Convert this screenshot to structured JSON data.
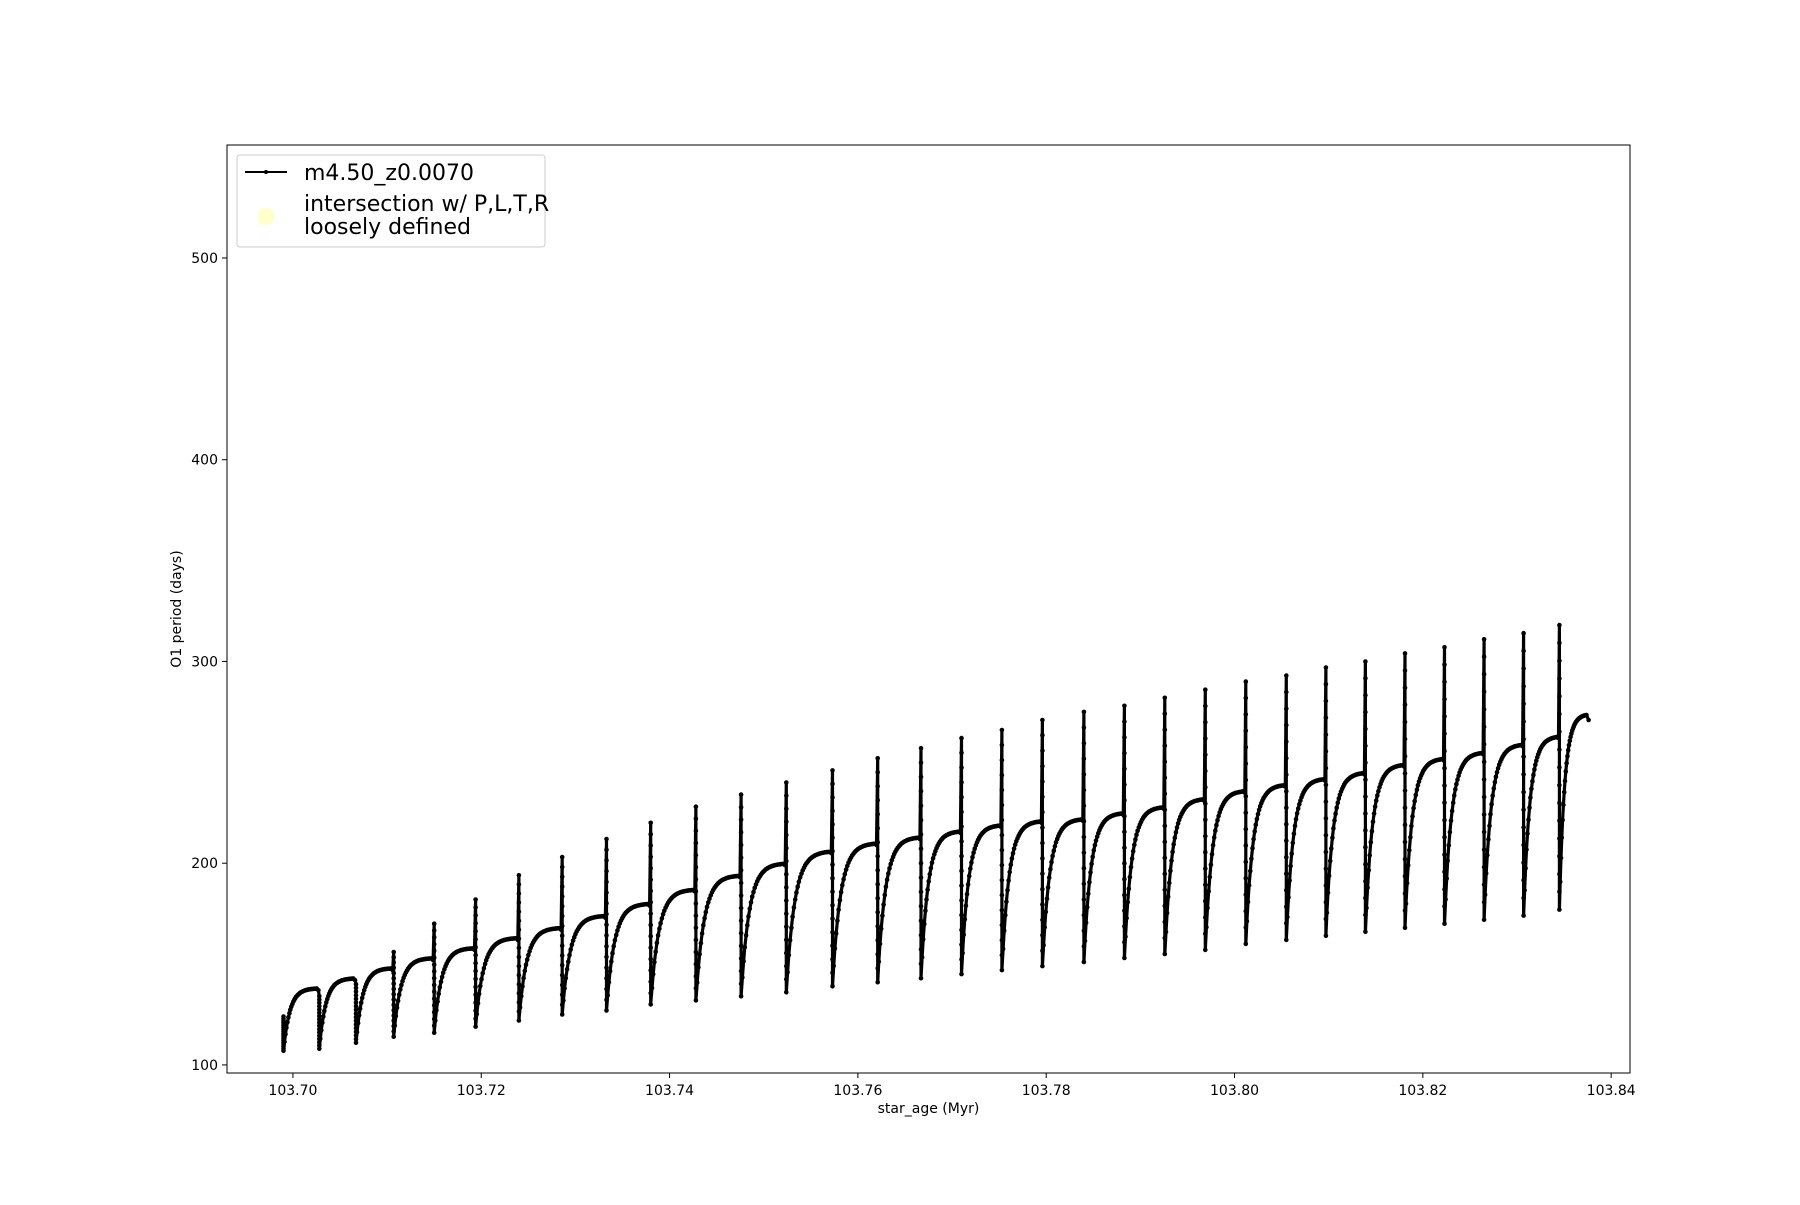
{
  "chart_data": {
    "type": "line",
    "title": "",
    "xlabel": "star_age (Myr)",
    "ylabel": "O1 period (days)",
    "xlim": [
      103.693,
      103.842
    ],
    "ylim": [
      96,
      556
    ],
    "xticks": [
      103.7,
      103.72,
      103.74,
      103.76,
      103.78,
      103.8,
      103.82,
      103.84
    ],
    "xtick_labels": [
      "103.70",
      "103.72",
      "103.74",
      "103.76",
      "103.78",
      "103.80",
      "103.82",
      "103.84"
    ],
    "yticks": [
      100,
      200,
      300,
      400,
      500
    ],
    "ytick_labels": [
      "100",
      "200",
      "300",
      "400",
      "500"
    ],
    "grid": false,
    "legend_position": "upper-left",
    "series": [
      {
        "name": "m4.50_z0.0070",
        "color": "#000000",
        "marker": "dot",
        "pulse_ages": [
          103.699,
          103.7028,
          103.7067,
          103.7107,
          103.715,
          103.7194,
          103.724,
          103.7286,
          103.7333,
          103.738,
          103.7428,
          103.7476,
          103.7524,
          103.7573,
          103.7621,
          103.7667,
          103.771,
          103.7753,
          103.7796,
          103.784,
          103.7883,
          103.7926,
          103.7969,
          103.8012,
          103.8055,
          103.8097,
          103.8139,
          103.8181,
          103.8223,
          103.8265,
          103.8307,
          103.8345
        ],
        "pulse_min_period": [
          107,
          108,
          111,
          114,
          116,
          119,
          122,
          125,
          127,
          130,
          132,
          134,
          136,
          139,
          141,
          143,
          145,
          147,
          149,
          151,
          153,
          155,
          157,
          160,
          162,
          164,
          166,
          168,
          170,
          172,
          174,
          177
        ],
        "pulse_plateau_period": [
          138,
          143,
          148,
          153,
          158,
          163,
          168,
          174,
          180,
          187,
          194,
          200,
          206,
          210,
          213,
          216,
          219,
          221,
          222,
          225,
          228,
          232,
          236,
          239,
          242,
          245,
          249,
          252,
          255,
          259,
          263,
          267
        ],
        "pulse_spike_period": [
          124,
          134,
          140,
          156,
          170,
          182,
          194,
          203,
          212,
          220,
          228,
          234,
          240,
          246,
          252,
          257,
          262,
          266,
          271,
          275,
          278,
          282,
          286,
          290,
          293,
          297,
          300,
          304,
          307,
          311,
          314,
          318
        ],
        "final_age": 103.8376,
        "final_period": 271
      },
      {
        "name": "intersection w/ P,L,T,R\nloosely defined",
        "name_lines": [
          "intersection w/ P,L,T,R",
          "loosely defined"
        ],
        "color": "#ffffcc",
        "marker": "circle",
        "points": []
      }
    ]
  }
}
